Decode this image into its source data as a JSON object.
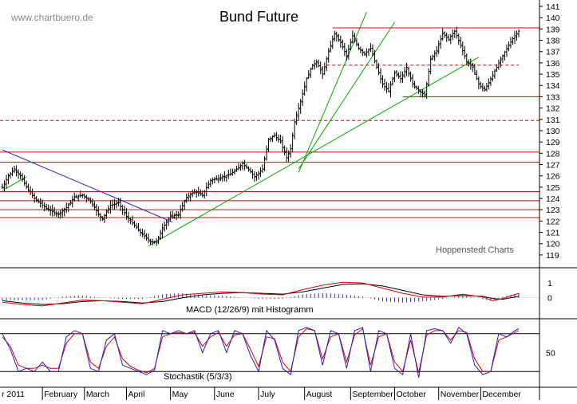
{
  "chart_data": [
    {
      "type": "candlestick",
      "title": "Bund Future",
      "watermark": "www.chartbuero.de",
      "credit": "Hoppenstedt Charts",
      "x_labels": [
        "r 2011",
        "February",
        "March",
        "April",
        "May",
        "June",
        "July",
        "August",
        "September",
        "October",
        "November",
        "December"
      ],
      "ylim": [
        118.5,
        141
      ],
      "y_ticks": [
        119,
        120,
        121,
        122,
        123,
        124,
        125,
        126,
        127,
        128,
        129,
        130,
        131,
        132,
        133,
        134,
        135,
        136,
        137,
        138,
        139,
        140,
        141
      ],
      "grid": false,
      "close_path": [
        [
          0,
          125.0
        ],
        [
          3,
          126.0
        ],
        [
          6,
          126.6
        ],
        [
          9,
          126.0
        ],
        [
          12,
          125.0
        ],
        [
          16,
          124.0
        ],
        [
          20,
          123.4
        ],
        [
          24,
          122.9
        ],
        [
          28,
          122.6
        ],
        [
          32,
          123.2
        ],
        [
          36,
          124.1
        ],
        [
          40,
          124.3
        ],
        [
          44,
          123.8
        ],
        [
          48,
          122.6
        ],
        [
          50,
          122.2
        ],
        [
          54,
          123.4
        ],
        [
          58,
          123.6
        ],
        [
          62,
          122.4
        ],
        [
          66,
          121.6
        ],
        [
          70,
          120.8
        ],
        [
          74,
          120.2
        ],
        [
          77,
          120.1
        ],
        [
          80,
          121.4
        ],
        [
          84,
          122.4
        ],
        [
          88,
          122.6
        ],
        [
          92,
          124.1
        ],
        [
          96,
          124.6
        ],
        [
          100,
          124.3
        ],
        [
          104,
          125.6
        ],
        [
          108,
          125.8
        ],
        [
          112,
          126.0
        ],
        [
          116,
          126.4
        ],
        [
          120,
          127.1
        ],
        [
          123,
          126.6
        ],
        [
          126,
          125.9
        ],
        [
          130,
          126.6
        ],
        [
          133,
          129.2
        ],
        [
          136,
          129.6
        ],
        [
          139,
          129.0
        ],
        [
          142,
          127.6
        ],
        [
          144,
          128.4
        ],
        [
          146,
          130.8
        ],
        [
          149,
          132.6
        ],
        [
          152,
          134.6
        ],
        [
          155,
          135.8
        ],
        [
          157,
          136.1
        ],
        [
          160,
          135.0
        ],
        [
          163,
          137.0
        ],
        [
          166,
          138.6
        ],
        [
          169,
          137.8
        ],
        [
          172,
          136.6
        ],
        [
          175,
          138.4
        ],
        [
          178,
          137.3
        ],
        [
          181,
          136.8
        ],
        [
          184,
          137.3
        ],
        [
          187,
          135.6
        ],
        [
          190,
          134.1
        ],
        [
          193,
          133.5
        ],
        [
          196,
          135.1
        ],
        [
          199,
          134.6
        ],
        [
          202,
          135.6
        ],
        [
          205,
          134.1
        ],
        [
          208,
          133.6
        ],
        [
          211,
          133.1
        ],
        [
          214,
          136.3
        ],
        [
          217,
          137.1
        ],
        [
          220,
          138.6
        ],
        [
          223,
          138.1
        ],
        [
          226,
          138.8
        ],
        [
          229,
          137.6
        ],
        [
          232,
          136.1
        ],
        [
          235,
          135.6
        ],
        [
          238,
          134.1
        ],
        [
          241,
          133.6
        ],
        [
          244,
          134.6
        ],
        [
          247,
          135.6
        ],
        [
          250,
          136.6
        ],
        [
          253,
          137.6
        ],
        [
          256,
          138.4
        ],
        [
          258,
          138.8
        ]
      ],
      "horizontal_lines": [
        {
          "value": 122.3,
          "style": "solid"
        },
        {
          "value": 123.0,
          "style": "solid"
        },
        {
          "value": 123.8,
          "style": "solid"
        },
        {
          "value": 124.6,
          "style": "solid"
        },
        {
          "value": 127.2,
          "style": "solid"
        },
        {
          "value": 128.1,
          "style": "solid"
        },
        {
          "value": 130.9,
          "style": "dashed"
        }
      ],
      "partial_lines": [
        {
          "from": 165,
          "value": 139.1,
          "style": "solid"
        },
        {
          "from": 200,
          "value": 133.0,
          "style": "solid"
        },
        {
          "from": 162,
          "to": 258,
          "value": 135.8,
          "style": "dashed"
        }
      ],
      "trend_lines": [
        {
          "color": "#1a1ad0",
          "from": [
            0,
            128.3
          ],
          "to": [
            85,
            121.9
          ]
        },
        {
          "color": "#00aa00",
          "from": [
            73,
            119.8
          ],
          "to": [
            238,
            136.5
          ]
        },
        {
          "color": "#00aa00",
          "from": [
            148,
            126.3
          ],
          "to": [
            182,
            140.5
          ]
        },
        {
          "color": "#00aa00",
          "from": [
            148,
            126.6
          ],
          "to": [
            196,
            139.6
          ]
        },
        {
          "color": "#00aa00",
          "from": [
            0,
            124.7
          ],
          "to": [
            12,
            125.9
          ]
        }
      ]
    },
    {
      "type": "line",
      "label": "MACD (12/26/9) mit Histogramm",
      "ylim": [
        -1.2,
        1.6
      ],
      "y_ticks": [
        1,
        0
      ],
      "macd": [
        [
          0,
          -0.3
        ],
        [
          10,
          -0.45
        ],
        [
          20,
          -0.55
        ],
        [
          30,
          -0.35
        ],
        [
          40,
          -0.15
        ],
        [
          50,
          -0.2
        ],
        [
          60,
          -0.3
        ],
        [
          70,
          -0.4
        ],
        [
          80,
          -0.1
        ],
        [
          90,
          0.2
        ],
        [
          100,
          0.3
        ],
        [
          110,
          0.4
        ],
        [
          120,
          0.35
        ],
        [
          130,
          0.25
        ],
        [
          140,
          0.2
        ],
        [
          150,
          0.55
        ],
        [
          160,
          0.85
        ],
        [
          170,
          1.05
        ],
        [
          180,
          1.0
        ],
        [
          190,
          0.65
        ],
        [
          200,
          0.3
        ],
        [
          210,
          0.05
        ],
        [
          220,
          0.05
        ],
        [
          230,
          0.25
        ],
        [
          240,
          0.05
        ],
        [
          245,
          -0.2
        ],
        [
          250,
          -0.05
        ],
        [
          258,
          0.3
        ]
      ],
      "signal": [
        [
          0,
          -0.2
        ],
        [
          10,
          -0.35
        ],
        [
          20,
          -0.45
        ],
        [
          30,
          -0.4
        ],
        [
          40,
          -0.25
        ],
        [
          50,
          -0.2
        ],
        [
          60,
          -0.25
        ],
        [
          70,
          -0.35
        ],
        [
          80,
          -0.25
        ],
        [
          90,
          0.0
        ],
        [
          100,
          0.2
        ],
        [
          110,
          0.3
        ],
        [
          120,
          0.35
        ],
        [
          130,
          0.3
        ],
        [
          140,
          0.25
        ],
        [
          150,
          0.4
        ],
        [
          160,
          0.65
        ],
        [
          170,
          0.9
        ],
        [
          180,
          0.95
        ],
        [
          190,
          0.8
        ],
        [
          200,
          0.5
        ],
        [
          210,
          0.2
        ],
        [
          220,
          0.1
        ],
        [
          230,
          0.15
        ],
        [
          240,
          0.1
        ],
        [
          245,
          -0.05
        ],
        [
          250,
          -0.1
        ],
        [
          258,
          0.1
        ]
      ]
    },
    {
      "type": "line",
      "label": "Stochastik (5/3/3)",
      "ylim": [
        0,
        100
      ],
      "y_ticks": [
        50
      ],
      "levels": [
        20,
        80
      ],
      "k": [
        [
          0,
          80
        ],
        [
          4,
          55
        ],
        [
          8,
          20
        ],
        [
          12,
          25
        ],
        [
          16,
          20
        ],
        [
          20,
          35
        ],
        [
          24,
          20
        ],
        [
          28,
          20
        ],
        [
          32,
          75
        ],
        [
          36,
          85
        ],
        [
          40,
          80
        ],
        [
          44,
          25
        ],
        [
          48,
          20
        ],
        [
          52,
          70
        ],
        [
          56,
          80
        ],
        [
          60,
          30
        ],
        [
          64,
          25
        ],
        [
          68,
          20
        ],
        [
          72,
          15
        ],
        [
          76,
          22
        ],
        [
          80,
          85
        ],
        [
          84,
          80
        ],
        [
          88,
          85
        ],
        [
          92,
          80
        ],
        [
          96,
          85
        ],
        [
          100,
          50
        ],
        [
          104,
          80
        ],
        [
          108,
          85
        ],
        [
          112,
          50
        ],
        [
          116,
          85
        ],
        [
          120,
          80
        ],
        [
          124,
          45
        ],
        [
          128,
          20
        ],
        [
          132,
          85
        ],
        [
          136,
          70
        ],
        [
          140,
          25
        ],
        [
          144,
          15
        ],
        [
          148,
          85
        ],
        [
          152,
          90
        ],
        [
          156,
          85
        ],
        [
          160,
          30
        ],
        [
          164,
          85
        ],
        [
          168,
          80
        ],
        [
          172,
          25
        ],
        [
          176,
          85
        ],
        [
          180,
          90
        ],
        [
          184,
          20
        ],
        [
          188,
          85
        ],
        [
          192,
          80
        ],
        [
          196,
          25
        ],
        [
          200,
          15
        ],
        [
          204,
          80
        ],
        [
          208,
          10
        ],
        [
          212,
          85
        ],
        [
          216,
          88
        ],
        [
          220,
          85
        ],
        [
          224,
          65
        ],
        [
          228,
          90
        ],
        [
          232,
          80
        ],
        [
          236,
          30
        ],
        [
          240,
          15
        ],
        [
          244,
          20
        ],
        [
          248,
          80
        ],
        [
          252,
          75
        ],
        [
          256,
          85
        ],
        [
          258,
          88
        ]
      ],
      "d": [
        [
          0,
          75
        ],
        [
          4,
          60
        ],
        [
          8,
          30
        ],
        [
          12,
          25
        ],
        [
          16,
          25
        ],
        [
          20,
          30
        ],
        [
          24,
          25
        ],
        [
          28,
          25
        ],
        [
          32,
          65
        ],
        [
          36,
          80
        ],
        [
          40,
          80
        ],
        [
          44,
          35
        ],
        [
          48,
          25
        ],
        [
          52,
          60
        ],
        [
          56,
          75
        ],
        [
          60,
          40
        ],
        [
          64,
          28
        ],
        [
          68,
          22
        ],
        [
          72,
          18
        ],
        [
          76,
          25
        ],
        [
          80,
          75
        ],
        [
          84,
          80
        ],
        [
          88,
          82
        ],
        [
          92,
          80
        ],
        [
          96,
          82
        ],
        [
          100,
          60
        ],
        [
          104,
          75
        ],
        [
          108,
          82
        ],
        [
          112,
          60
        ],
        [
          116,
          78
        ],
        [
          120,
          80
        ],
        [
          124,
          55
        ],
        [
          128,
          28
        ],
        [
          132,
          75
        ],
        [
          136,
          72
        ],
        [
          140,
          35
        ],
        [
          144,
          20
        ],
        [
          148,
          75
        ],
        [
          152,
          88
        ],
        [
          156,
          85
        ],
        [
          160,
          40
        ],
        [
          164,
          75
        ],
        [
          168,
          80
        ],
        [
          172,
          35
        ],
        [
          176,
          78
        ],
        [
          180,
          88
        ],
        [
          184,
          30
        ],
        [
          188,
          75
        ],
        [
          192,
          80
        ],
        [
          196,
          35
        ],
        [
          200,
          20
        ],
        [
          204,
          70
        ],
        [
          208,
          18
        ],
        [
          212,
          78
        ],
        [
          216,
          85
        ],
        [
          220,
          85
        ],
        [
          224,
          70
        ],
        [
          228,
          85
        ],
        [
          232,
          82
        ],
        [
          236,
          40
        ],
        [
          240,
          20
        ],
        [
          244,
          20
        ],
        [
          248,
          70
        ],
        [
          252,
          75
        ],
        [
          256,
          82
        ],
        [
          258,
          85
        ]
      ]
    }
  ]
}
